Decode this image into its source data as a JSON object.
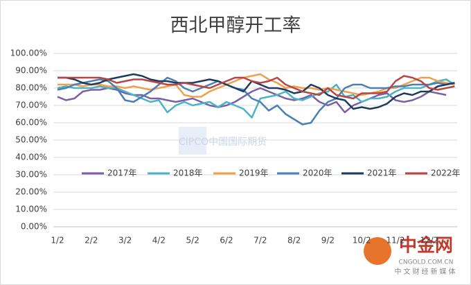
{
  "chart_data": {
    "type": "line",
    "title": "西北甲醇开工率",
    "categories": [
      "1/2",
      null,
      null,
      null,
      "2/2",
      null,
      null,
      null,
      "3/2",
      null,
      null,
      null,
      "4/2",
      null,
      null,
      null,
      "5/2",
      null,
      null,
      null,
      "6/2",
      null,
      null,
      null,
      "7/2",
      null,
      null,
      null,
      "8/2",
      null,
      null,
      null,
      "9/2",
      null,
      null,
      null,
      "10/2",
      null,
      null,
      null,
      "11/2",
      null,
      null,
      null,
      "12/2",
      null,
      null,
      null
    ],
    "ylim": [
      0,
      100
    ],
    "yticks": [
      {
        "value": 0,
        "label": "0.00%"
      },
      {
        "value": 10,
        "label": "10.00%"
      },
      {
        "value": 20,
        "label": "20.00%"
      },
      {
        "value": 30,
        "label": "30.00%"
      },
      {
        "value": 40,
        "label": "40.00%"
      },
      {
        "value": 50,
        "label": "50.00%"
      },
      {
        "value": 60,
        "label": "60.00%"
      },
      {
        "value": 70,
        "label": "70.00%"
      },
      {
        "value": 80,
        "label": "80.00%"
      },
      {
        "value": 90,
        "label": "90.00%"
      },
      {
        "value": 100,
        "label": "100.00%"
      }
    ],
    "grid": true,
    "series": [
      {
        "name": "2017年",
        "color": "#7b5ea7",
        "values": [
          75,
          73,
          74,
          78,
          79,
          79,
          80,
          79,
          77,
          76,
          76,
          74,
          74,
          73,
          72,
          73,
          74,
          72,
          70,
          69,
          70,
          72,
          75,
          78,
          80,
          78,
          76,
          74,
          73,
          74,
          76,
          72,
          70,
          72,
          66,
          70,
          72,
          74,
          76,
          77,
          73,
          72,
          73,
          75,
          78,
          77,
          76,
          null
        ]
      },
      {
        "name": "2018年",
        "color": "#4bb3c8",
        "values": [
          80,
          81,
          80,
          80,
          80,
          81,
          80,
          80,
          78,
          76,
          74,
          72,
          73,
          66,
          70,
          72,
          70,
          71,
          72,
          69,
          72,
          70,
          68,
          63,
          74,
          75,
          76,
          78,
          74,
          73,
          75,
          77,
          78,
          82,
          75,
          76,
          72,
          74,
          74,
          75,
          78,
          80,
          80,
          80,
          82,
          84,
          85,
          82
        ]
      },
      {
        "name": "2019年",
        "color": "#f0a04b",
        "values": [
          82,
          82,
          82,
          81,
          82,
          82,
          81,
          81,
          80,
          81,
          80,
          79,
          80,
          81,
          82,
          76,
          75,
          75,
          78,
          80,
          82,
          84,
          86,
          87,
          88,
          85,
          83,
          80,
          81,
          80,
          80,
          79,
          80,
          79,
          78,
          77,
          76,
          77,
          78,
          80,
          80,
          82,
          84,
          86,
          86,
          84,
          83,
          82
        ]
      },
      {
        "name": "2020年",
        "color": "#4a7fb5",
        "values": [
          79,
          80,
          82,
          83,
          84,
          85,
          84,
          80,
          73,
          72,
          75,
          78,
          82,
          86,
          84,
          80,
          78,
          80,
          82,
          84,
          82,
          80,
          79,
          74,
          72,
          67,
          70,
          65,
          62,
          59,
          60,
          67,
          72,
          74,
          80,
          82,
          82,
          80,
          80,
          80,
          81,
          81,
          82,
          82,
          82,
          83,
          82,
          83
        ]
      },
      {
        "name": "2021年",
        "color": "#1f3a5f",
        "values": [
          86,
          86,
          85,
          83,
          82,
          83,
          85,
          86,
          87,
          88,
          87,
          85,
          84,
          84,
          83,
          83,
          83,
          84,
          85,
          84,
          82,
          80,
          78,
          84,
          82,
          80,
          80,
          79,
          77,
          78,
          82,
          80,
          76,
          74,
          73,
          68,
          69,
          68,
          69,
          71,
          75,
          77,
          76,
          78,
          78,
          81,
          82,
          83
        ]
      },
      {
        "name": "2022年",
        "color": "#b84545",
        "values": [
          86,
          86,
          86,
          86,
          86,
          86,
          85,
          83,
          84,
          85,
          85,
          84,
          83,
          82,
          82,
          83,
          82,
          81,
          80,
          82,
          84,
          86,
          86,
          84,
          83,
          84,
          86,
          82,
          80,
          78,
          77,
          76,
          80,
          76,
          75,
          74,
          77,
          77,
          77,
          78,
          84,
          87,
          86,
          84,
          80,
          79,
          80,
          81
        ]
      }
    ],
    "annotations": [
      "CIPCO中国国际期货",
      "中金网",
      "CNGOLD.COM.CN",
      "中文财经新媒体"
    ]
  }
}
